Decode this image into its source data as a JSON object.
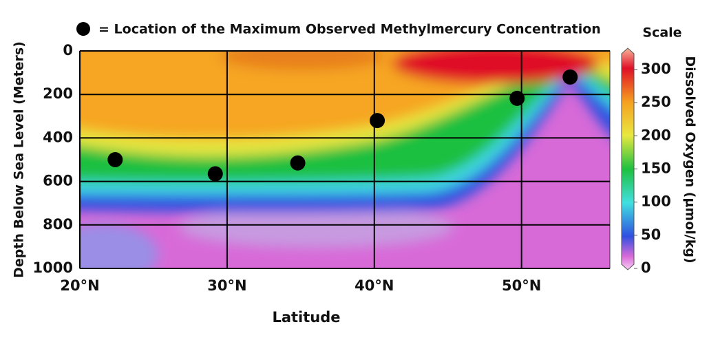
{
  "chart_data": {
    "type": "scatter",
    "legend_text": "= Location of the Maximum Observed Methylmercury Concentration",
    "x": [
      22.4,
      29.2,
      34.8,
      40.2,
      49.7,
      53.3
    ],
    "y": [
      500,
      565,
      515,
      320,
      218,
      120
    ],
    "color": "#000000",
    "xlabel": "Latitude",
    "ylabel": "Depth Below Sea Level (Meters)",
    "xlim": [
      20,
      56
    ],
    "ylim": [
      1000,
      0
    ],
    "xticks": [
      {
        "value": 20,
        "label": "20°N"
      },
      {
        "value": 30,
        "label": "30°N"
      },
      {
        "value": 40,
        "label": "40°N"
      },
      {
        "value": 50,
        "label": "50°N"
      }
    ],
    "yticks": [
      0,
      200,
      400,
      600,
      800,
      1000
    ],
    "grid": true,
    "colorbar": {
      "title": "Scale",
      "label": "Dissolved Oxygen (µmol/kg)",
      "lim": [
        0,
        330
      ],
      "ticks": [
        0,
        50,
        100,
        150,
        200,
        250,
        300
      ],
      "colorscale": [
        [
          0,
          "#f8cef4"
        ],
        [
          20,
          "#d86ad8"
        ],
        [
          50,
          "#2f50e0"
        ],
        [
          100,
          "#40e0e0"
        ],
        [
          150,
          "#1ec040"
        ],
        [
          200,
          "#e8e840"
        ],
        [
          250,
          "#f6a020"
        ],
        [
          300,
          "#e01028"
        ],
        [
          330,
          "#f8b49a"
        ]
      ]
    }
  }
}
